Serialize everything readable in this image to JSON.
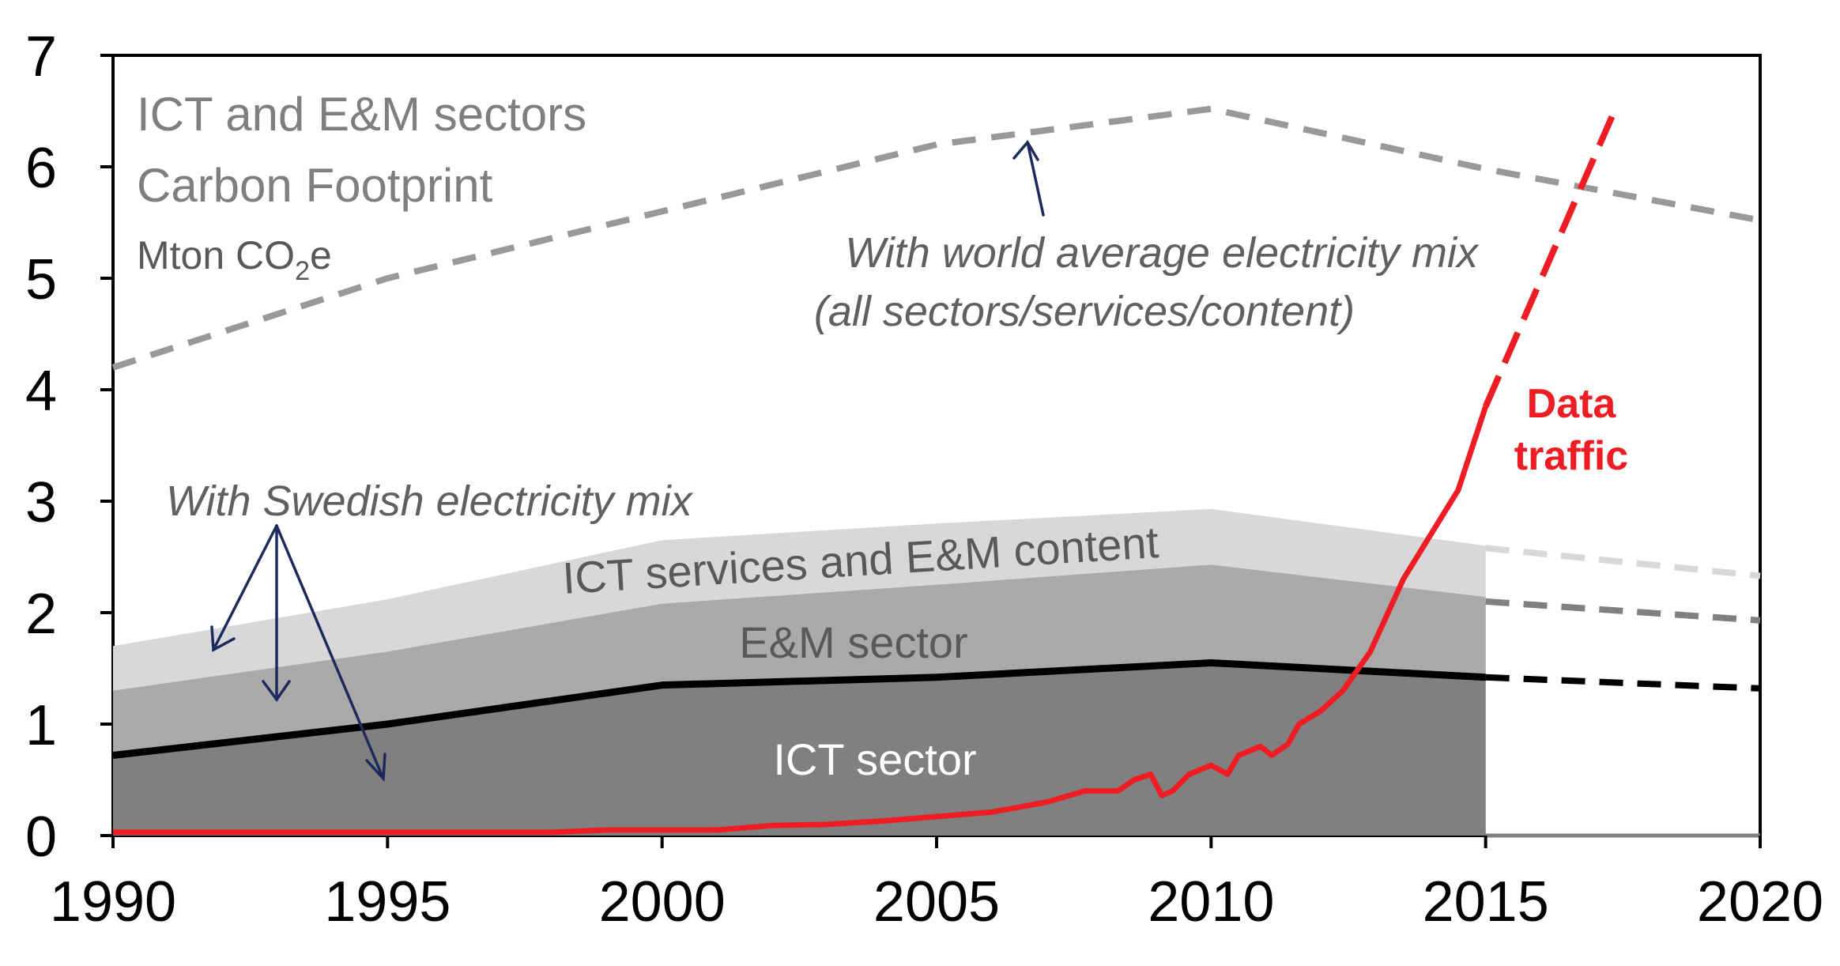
{
  "chart_data": {
    "type": "area",
    "title": "ICT and E&M sectors",
    "subtitle": "Carbon Footprint",
    "ylabel_parts": {
      "base": "Mton CO",
      "sub": "2",
      "suffix": "e"
    },
    "xlim": [
      1990,
      2020
    ],
    "ylim": [
      0,
      7
    ],
    "x_ticks": [
      "1990",
      "1995",
      "2000",
      "2005",
      "2010",
      "2015",
      "2020"
    ],
    "y_ticks": [
      "0",
      "1",
      "2",
      "3",
      "4",
      "5",
      "6",
      "7"
    ],
    "grid": false,
    "stacked_areas": [
      {
        "name": "ICT sector",
        "color": "#808080",
        "x": [
          1990,
          1995,
          2000,
          2005,
          2010,
          2015
        ],
        "values": [
          0.72,
          1.0,
          1.35,
          1.42,
          1.55,
          1.42
        ]
      },
      {
        "name": "E&M sector",
        "color": "#aaaaaa",
        "x": [
          1990,
          1995,
          2000,
          2005,
          2010,
          2015
        ],
        "values": [
          1.3,
          1.65,
          2.08,
          2.25,
          2.43,
          2.14
        ]
      },
      {
        "name": "ICT services and E&M content",
        "color": "#d8d8da",
        "x": [
          1990,
          1995,
          2000,
          2005,
          2010,
          2015
        ],
        "values": [
          1.7,
          2.12,
          2.65,
          2.8,
          2.93,
          2.6
        ]
      }
    ],
    "projections": [
      {
        "name": "ICT sector projection",
        "color": "#000000",
        "x": [
          2015,
          2020
        ],
        "values": [
          1.42,
          1.32
        ]
      },
      {
        "name": "E&M sector projection",
        "color": "#808080",
        "x": [
          2015,
          2020
        ],
        "values": [
          2.1,
          1.93
        ]
      },
      {
        "name": "ICT services and E&M content projection",
        "color": "#d8d8da",
        "x": [
          2015,
          2020
        ],
        "values": [
          2.58,
          2.33
        ]
      }
    ],
    "series": [
      {
        "name": "With world average electricity mix",
        "color": "#999999",
        "style": "dashed",
        "x": [
          1990,
          1995,
          2000,
          2005,
          2010,
          2015,
          2020
        ],
        "values": [
          4.2,
          5.0,
          5.6,
          6.2,
          6.52,
          5.98,
          5.52
        ]
      },
      {
        "name": "Data traffic",
        "color": "#ee1d23",
        "style": "solid",
        "x": [
          1990,
          1998,
          1999,
          2001,
          2002,
          2003,
          2004,
          2005,
          2006,
          2007,
          2007.7,
          2008.3,
          2008.6,
          2008.9,
          2009.1,
          2009.3,
          2009.6,
          2010,
          2010.3,
          2010.5,
          2010.9,
          2011.1,
          2011.4,
          2011.6,
          2012,
          2012.4,
          2012.9,
          2013.5,
          2014.5,
          2015
        ],
        "values": [
          0.03,
          0.03,
          0.05,
          0.05,
          0.09,
          0.1,
          0.13,
          0.17,
          0.21,
          0.3,
          0.4,
          0.4,
          0.5,
          0.55,
          0.36,
          0.4,
          0.55,
          0.63,
          0.55,
          0.72,
          0.8,
          0.72,
          0.82,
          1.0,
          1.12,
          1.3,
          1.65,
          2.3,
          3.1,
          3.85
        ]
      },
      {
        "name": "Data traffic projection",
        "color": "#ee1d23",
        "style": "dashed",
        "x": [
          2015,
          2017.3
        ],
        "values": [
          3.85,
          6.45
        ]
      }
    ],
    "annotations": {
      "world_mix_line1": "With world average electricity mix",
      "world_mix_line2": "(all sectors/services/content)",
      "swedish_mix": "With Swedish electricity mix",
      "ict_services": "ICT services and E&M content",
      "em_sector": "E&M sector",
      "ict_sector": "ICT sector",
      "data_traffic_line1": "Data",
      "data_traffic_line2": "traffic"
    },
    "arrow_color": "#1f2a5c"
  }
}
